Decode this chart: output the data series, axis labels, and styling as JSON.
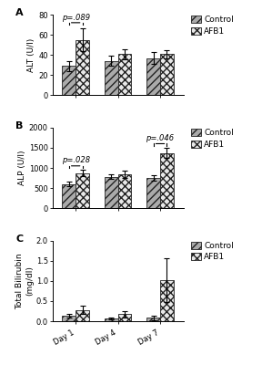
{
  "panels": [
    "A",
    "B",
    "C"
  ],
  "days": [
    "Day 1",
    "Day 4",
    "Day 7"
  ],
  "ALT": {
    "ylabel": "ALT (U/l)",
    "ylim": [
      0,
      80
    ],
    "yticks": [
      0,
      20,
      40,
      60,
      80
    ],
    "control_means": [
      29,
      34,
      37
    ],
    "control_errs": [
      5,
      5,
      6
    ],
    "afb1_means": [
      55,
      41,
      41
    ],
    "afb1_errs": [
      11,
      5,
      4
    ],
    "sig_brackets": [
      {
        "day_idx": 0,
        "label": "p=.089",
        "y": 72
      }
    ]
  },
  "ALP": {
    "ylabel": "ALP (U/l)",
    "ylim": [
      0,
      2000
    ],
    "yticks": [
      0,
      500,
      1000,
      1500,
      2000
    ],
    "control_means": [
      600,
      780,
      750
    ],
    "control_errs": [
      60,
      60,
      60
    ],
    "afb1_means": [
      870,
      840,
      1370
    ],
    "afb1_errs": [
      80,
      90,
      130
    ],
    "sig_brackets": [
      {
        "day_idx": 0,
        "label": "p=.028",
        "y": 1050
      },
      {
        "day_idx": 2,
        "label": "p=.046",
        "y": 1600
      }
    ]
  },
  "BIL": {
    "ylabel": "Total Bilirubin\n(mg/dl)",
    "ylim": [
      0,
      2.0
    ],
    "yticks": [
      0.0,
      0.5,
      1.0,
      1.5,
      2.0
    ],
    "control_means": [
      0.13,
      0.06,
      0.08
    ],
    "control_errs": [
      0.04,
      0.02,
      0.05
    ],
    "afb1_means": [
      0.28,
      0.18,
      1.02
    ],
    "afb1_errs": [
      0.1,
      0.08,
      0.55
    ],
    "sig_brackets": []
  },
  "bar_width": 0.32,
  "control_hatch": "////",
  "afb1_hatch": "xxxx",
  "control_color": "#aaaaaa",
  "afb1_color": "#e8e8e8",
  "control_edgecolor": "#222222",
  "afb1_edgecolor": "#222222",
  "background_color": "#ffffff",
  "fontsize_label": 6.5,
  "fontsize_tick": 6,
  "fontsize_legend": 6.5,
  "fontsize_panel": 8
}
